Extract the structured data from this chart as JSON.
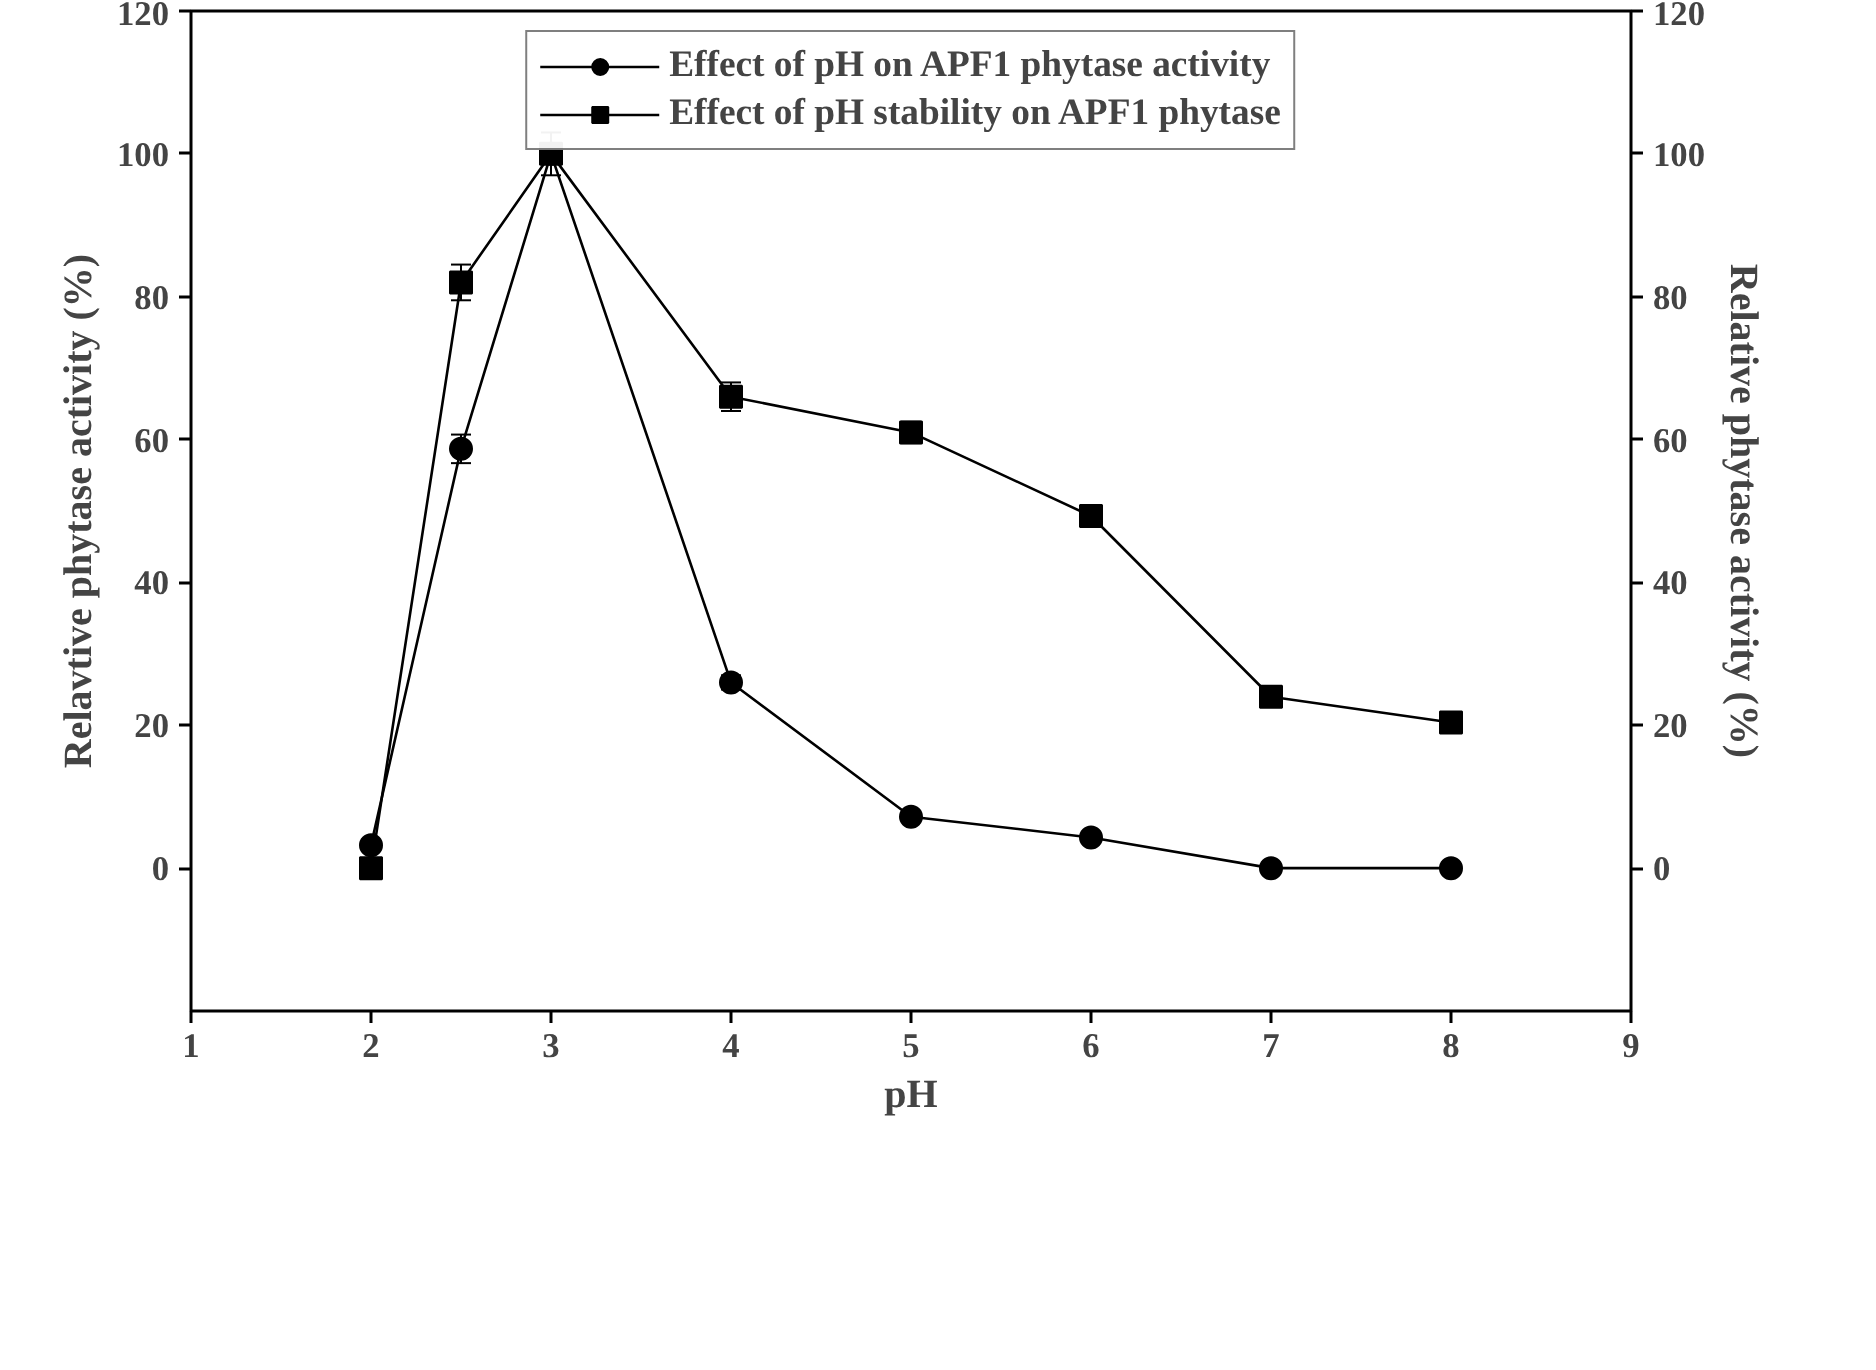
{
  "chart_data": {
    "type": "line",
    "xlabel": "pH",
    "ylabel": "Relavtive phytase activity (%)",
    "y2label": "Relative phytase activity (%)",
    "x": [
      2,
      2.5,
      3,
      4,
      5,
      6,
      7,
      8
    ],
    "series": [
      {
        "name": "Effect of pH on APF1 phytase activity",
        "color": "#000000",
        "marker": "circle",
        "values": [
          3.2,
          58.7,
          100,
          26,
          7.2,
          4.3,
          0,
          0
        ],
        "errors": [
          null,
          2,
          3,
          1,
          null,
          null,
          null,
          null
        ]
      },
      {
        "name": "Effect of pH stability on APF1 phytase",
        "color": "#000000",
        "marker": "square",
        "values": [
          0,
          82,
          100,
          66,
          61,
          49.3,
          24,
          20.4
        ],
        "errors": [
          null,
          2.5,
          null,
          2,
          1.5,
          1.5,
          1,
          1
        ]
      }
    ],
    "xlim": [
      1,
      9
    ],
    "xticks": [
      1,
      2,
      3,
      4,
      5,
      6,
      7,
      8,
      9
    ],
    "ylim": [
      -20,
      120
    ],
    "yticks": [
      0,
      20,
      40,
      60,
      80,
      100,
      120
    ],
    "y2lim": [
      -20,
      120
    ],
    "y2ticks": [
      0,
      20,
      40,
      60,
      80,
      100,
      120
    ],
    "grid": false,
    "legend": "top",
    "line_style": "solid"
  }
}
